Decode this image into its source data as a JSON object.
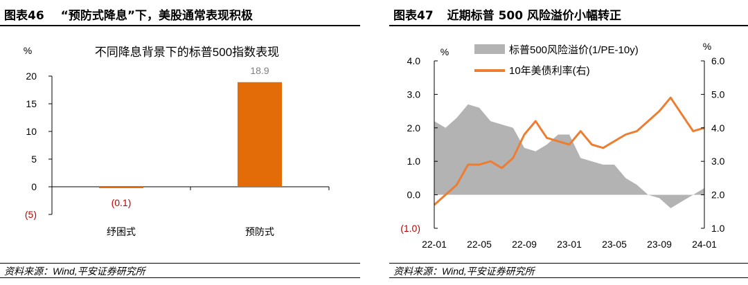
{
  "left": {
    "figure_label": "图表46",
    "title": "“预防式降息”下，美股通常表现积极",
    "source": "资料来源：Wind,平安证券研究所",
    "chart_data": {
      "type": "bar",
      "title": "不同降息背景下的标普500指数表现",
      "unit_label": "%",
      "categories": [
        "纾困式",
        "预防式"
      ],
      "values": [
        -0.1,
        18.9
      ],
      "data_labels": [
        "(0.1)",
        "18.9"
      ],
      "ylim": [
        -5,
        20
      ],
      "yticks": [
        20,
        15,
        10,
        5,
        0,
        -5
      ],
      "ytick_labels": [
        "20",
        "15",
        "10",
        "5",
        "0",
        "(5)"
      ],
      "bar_color": "#E36C09",
      "negative_label_color": "#C00000",
      "grid": false
    }
  },
  "right": {
    "figure_label": "图表47",
    "title": "近期标普 500 风险溢价小幅转正",
    "source": "资料来源：Wind,平安证券研究所",
    "chart_data": {
      "type": "area",
      "left_unit": "%",
      "right_unit": "%",
      "ylim_left": [
        -1.0,
        4.0
      ],
      "ylim_right": [
        1.0,
        6.0
      ],
      "yticks_left": [
        "4.0",
        "3.0",
        "2.0",
        "1.0",
        "0.0",
        "(1.0)"
      ],
      "yticks_right": [
        "6.0",
        "5.0",
        "4.0",
        "3.0",
        "2.0",
        "1.0"
      ],
      "xtick_labels": [
        "22-01",
        "22-05",
        "22-09",
        "23-01",
        "23-05",
        "23-09",
        "24-01"
      ],
      "legend_position": "top",
      "grid": false,
      "x": [
        "2022-01",
        "2022-02",
        "2022-03",
        "2022-04",
        "2022-05",
        "2022-06",
        "2022-07",
        "2022-08",
        "2022-09",
        "2022-10",
        "2022-11",
        "2022-12",
        "2023-01",
        "2023-02",
        "2023-03",
        "2023-04",
        "2023-05",
        "2023-06",
        "2023-07",
        "2023-08",
        "2023-09",
        "2023-10",
        "2023-11",
        "2023-12",
        "2024-01"
      ],
      "series": [
        {
          "name": "标普500风险溢价(1/PE-10y)",
          "axis": "left",
          "style": "area",
          "color": "#B3B3B3",
          "values": [
            2.2,
            2.0,
            2.3,
            2.7,
            2.6,
            2.2,
            2.1,
            2.0,
            1.4,
            1.3,
            1.5,
            1.8,
            1.8,
            1.1,
            1.0,
            0.9,
            0.9,
            0.5,
            0.3,
            0.0,
            -0.1,
            -0.4,
            -0.2,
            0.0,
            0.2
          ]
        },
        {
          "name": "10年美债利率(右)",
          "axis": "right",
          "style": "line",
          "color": "#ED7D31",
          "values": [
            1.7,
            2.0,
            2.3,
            2.9,
            2.9,
            3.0,
            2.8,
            3.1,
            3.8,
            4.2,
            3.7,
            3.6,
            3.5,
            3.9,
            3.5,
            3.4,
            3.6,
            3.8,
            3.9,
            4.2,
            4.5,
            4.9,
            4.4,
            3.9,
            4.0
          ]
        }
      ]
    }
  }
}
